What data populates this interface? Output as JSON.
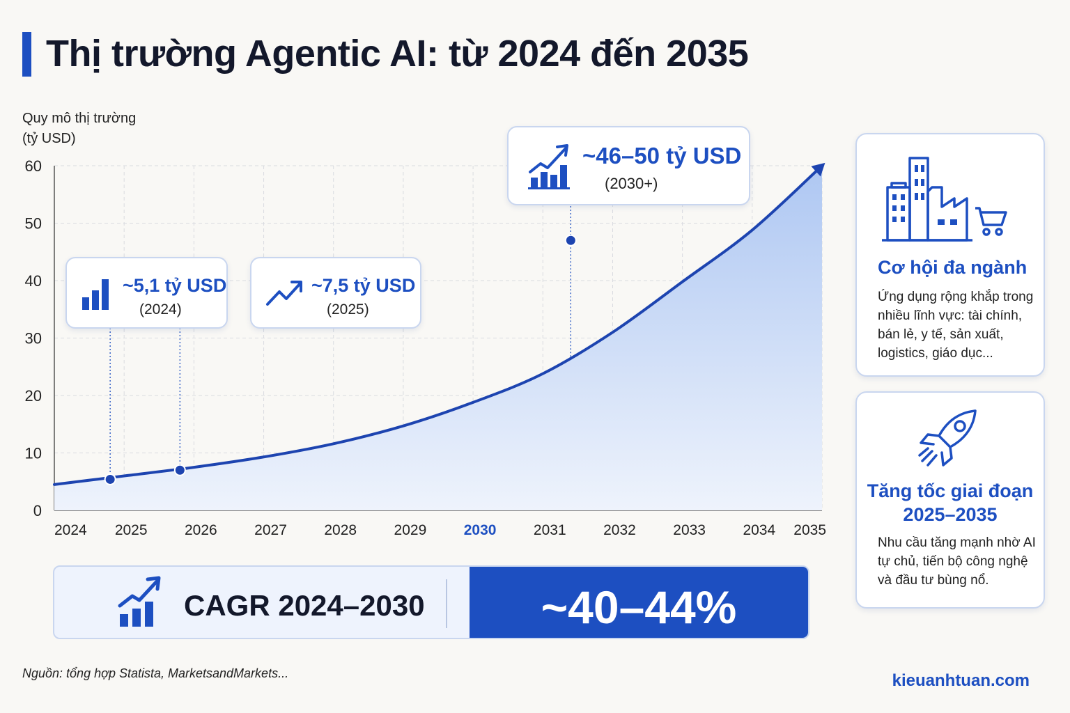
{
  "title": "Thị trường Agentic AI: từ 2024 đến 2035",
  "ylabel_lines": [
    "Quy mô thị trường",
    "(tỷ USD)"
  ],
  "chart_data": {
    "type": "area",
    "title": "Thị trường Agentic AI: từ 2024 đến 2035",
    "ylabel": "Quy mô thị trường (tỷ USD)",
    "xlabel": "",
    "ylim": [
      0,
      60
    ],
    "xlim": [
      2024,
      2035
    ],
    "yticks": [
      0,
      10,
      20,
      30,
      40,
      50,
      60
    ],
    "xticks": [
      "2024",
      "2025",
      "2026",
      "2027",
      "2028",
      "2029",
      "2030",
      "2031",
      "2032",
      "2033",
      "2034",
      "2035"
    ],
    "highlight_tick": "2030",
    "grid": true,
    "series": [
      {
        "x": [
          2024,
          2025,
          2026,
          2027,
          2028,
          2029,
          2030,
          2031,
          2032,
          2033,
          2034,
          2035
        ],
        "y": [
          4.5,
          6.0,
          7.5,
          9.3,
          11.6,
          14.7,
          18.8,
          23.8,
          31.0,
          39.8,
          48.8,
          60.0
        ]
      }
    ],
    "markers": [
      {
        "x": 2024.8,
        "y": 5.4
      },
      {
        "x": 2025.8,
        "y": 7.0
      },
      {
        "x": 2031.4,
        "y": 47
      }
    ],
    "annotations": [
      {
        "value": "~5,1 tỷ USD",
        "period": "(2024)",
        "icon": "bar-chart-icon"
      },
      {
        "value": "~7,5 tỷ USD",
        "period": "(2025)",
        "icon": "trend-up-icon"
      },
      {
        "value": "~46–50 tỷ USD",
        "period": "(2030+)",
        "icon": "growth-chart-icon"
      }
    ]
  },
  "cagr": {
    "label": "CAGR 2024–2030",
    "value": "~40–44%",
    "icon": "growth-chart-icon"
  },
  "side_cards": [
    {
      "icon": "industry-buildings-cart-icon",
      "title": "Cơ hội đa ngành",
      "lines": [
        "Ứng dụng rộng khắp trong",
        "nhiều lĩnh vực: tài chính,",
        "bán lẻ, y tế, sản xuất,",
        "logistics, giáo dục..."
      ]
    },
    {
      "icon": "rocket-icon",
      "title_lines": [
        "Tăng tốc giai đoạn",
        "2025–2035"
      ],
      "lines": [
        "Nhu cầu tăng mạnh nhờ AI",
        "tự chủ, tiến bộ công nghệ",
        "và đầu tư bùng nổ."
      ]
    }
  ],
  "source": "Nguồn: tổng hợp Statista, MarketsandMarkets...",
  "site": "kieuanhtuan.com",
  "colors": {
    "accent": "#1d4fc1",
    "text": "#13182b",
    "background": "#f9f8f5",
    "card_border": "#c9d6ef"
  }
}
